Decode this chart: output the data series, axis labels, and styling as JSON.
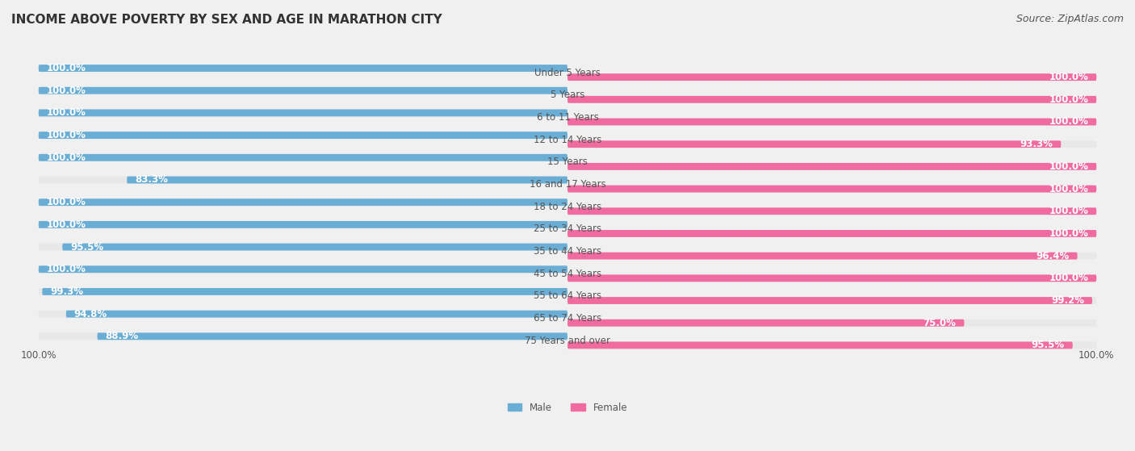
{
  "title": "INCOME ABOVE POVERTY BY SEX AND AGE IN MARATHON CITY",
  "source": "Source: ZipAtlas.com",
  "categories": [
    "Under 5 Years",
    "5 Years",
    "6 to 11 Years",
    "12 to 14 Years",
    "15 Years",
    "16 and 17 Years",
    "18 to 24 Years",
    "25 to 34 Years",
    "35 to 44 Years",
    "45 to 54 Years",
    "55 to 64 Years",
    "65 to 74 Years",
    "75 Years and over"
  ],
  "male_values": [
    100.0,
    100.0,
    100.0,
    100.0,
    100.0,
    83.3,
    100.0,
    100.0,
    95.5,
    100.0,
    99.3,
    94.8,
    88.9
  ],
  "female_values": [
    100.0,
    100.0,
    100.0,
    93.3,
    100.0,
    100.0,
    100.0,
    100.0,
    96.4,
    100.0,
    99.2,
    75.0,
    95.5
  ],
  "male_color": "#6aaed6",
  "male_color_light": "#aed4ee",
  "female_color": "#f06ca0",
  "female_color_light": "#f9bdd4",
  "bg_color": "#f0f0f0",
  "bar_bg_color": "#e8e8e8",
  "title_fontsize": 11,
  "label_fontsize": 8.5,
  "bar_value_fontsize": 8.5,
  "category_fontsize": 8.5,
  "source_fontsize": 9,
  "bar_height": 0.32,
  "bar_gap": 0.08,
  "x_axis_label": "100.0%",
  "legend_male": "Male",
  "legend_female": "Female"
}
